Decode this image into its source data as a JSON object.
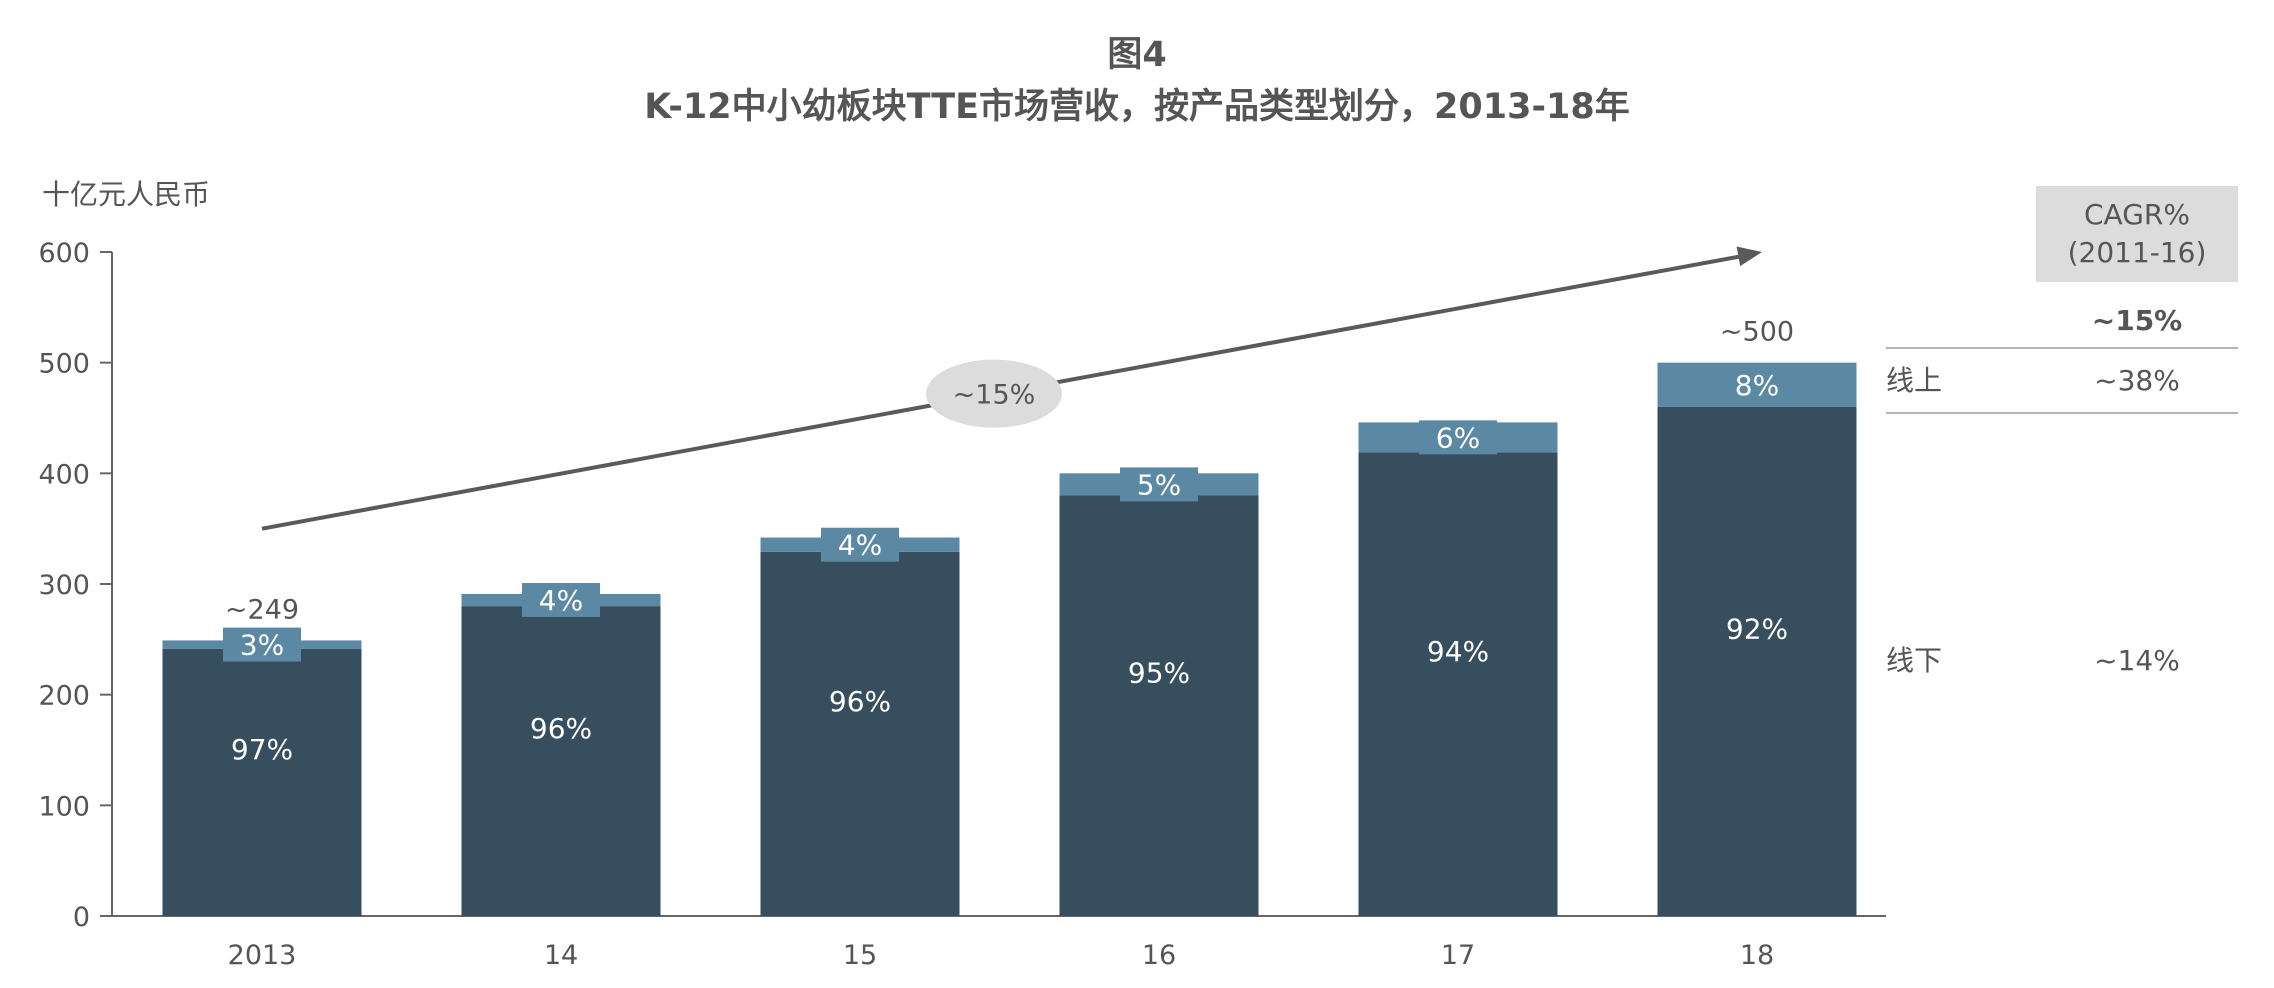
{
  "figure_label": "图4",
  "chart_data": {
    "type": "bar",
    "stacked": true,
    "title": "K-12中小幼板块TTE市场营收，按产品类型划分，2013-18年",
    "ylabel": "十亿元人民币",
    "xlabel": "",
    "ylim": [
      0,
      600
    ],
    "yticks": [
      "0",
      "100",
      "200",
      "300",
      "400",
      "500",
      "600"
    ],
    "categories": [
      "2013",
      "14",
      "15",
      "16",
      "17",
      "18"
    ],
    "series": [
      {
        "name": "线下",
        "color": "#364e5e",
        "values": [
          241.5,
          280,
          329,
          380,
          419,
          460
        ],
        "labels": [
          "97%",
          "96%",
          "96%",
          "95%",
          "94%",
          "92%"
        ]
      },
      {
        "name": "线上",
        "color": "#5b88a3",
        "values": [
          7.5,
          11,
          13,
          20,
          27,
          40
        ],
        "labels": [
          "3%",
          "4%",
          "4%",
          "5%",
          "6%",
          "8%"
        ]
      }
    ],
    "totals": [
      {
        "index": 0,
        "label": "~249"
      },
      {
        "index": 5,
        "label": "~500"
      }
    ],
    "trend": {
      "label": "~15%",
      "from_value": 350,
      "to_value": 600
    }
  },
  "cagr_table": {
    "header_line1": "CAGR%",
    "header_line2": "(2011-16)",
    "total": "~15%",
    "rows": [
      {
        "name": "线上",
        "value": "~38%"
      },
      {
        "name": "线下",
        "value": "~14%"
      }
    ]
  },
  "colors": {
    "text": "#555555",
    "axis": "#666666",
    "arrow": "#5a5a5a",
    "badge": "#dcdcdc",
    "header_bg": "#dcdcdc",
    "divider": "#b5b5b5"
  }
}
